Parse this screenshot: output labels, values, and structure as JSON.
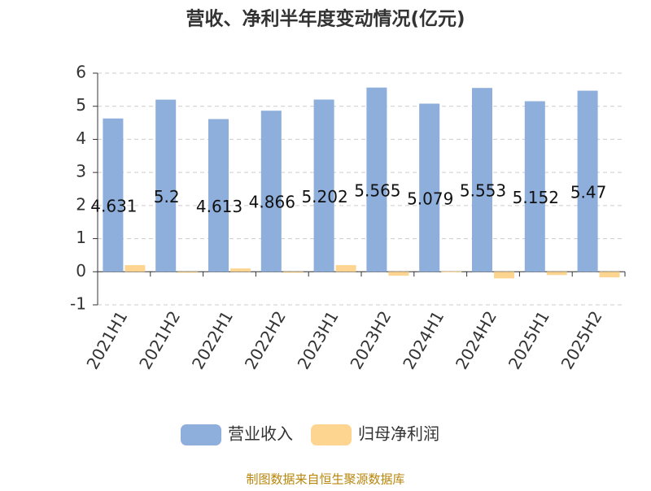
{
  "chart_data": {
    "type": "bar",
    "title": "营收、净利半年度变动情况(亿元)",
    "categories": [
      "2021H1",
      "2021H2",
      "2022H1",
      "2022H2",
      "2023H1",
      "2023H2",
      "2024H1",
      "2024H2",
      "2025H1",
      "2025H2"
    ],
    "series": [
      {
        "name": "营业收入",
        "color": "#8eaedb",
        "values": [
          4.631,
          5.2,
          4.613,
          4.866,
          5.202,
          5.565,
          5.079,
          5.553,
          5.152,
          5.47
        ]
      },
      {
        "name": "归母净利润",
        "color": "#fdd591",
        "values": [
          0.2,
          -0.03,
          0.1,
          -0.03,
          0.2,
          -0.12,
          0.01,
          -0.2,
          -0.1,
          -0.17
        ]
      }
    ],
    "ylim": [
      -1,
      6
    ],
    "yticks": [
      -1,
      0,
      1,
      2,
      3,
      4,
      5,
      6
    ],
    "grid": true,
    "source": "制图数据来自恒生聚源数据库"
  }
}
